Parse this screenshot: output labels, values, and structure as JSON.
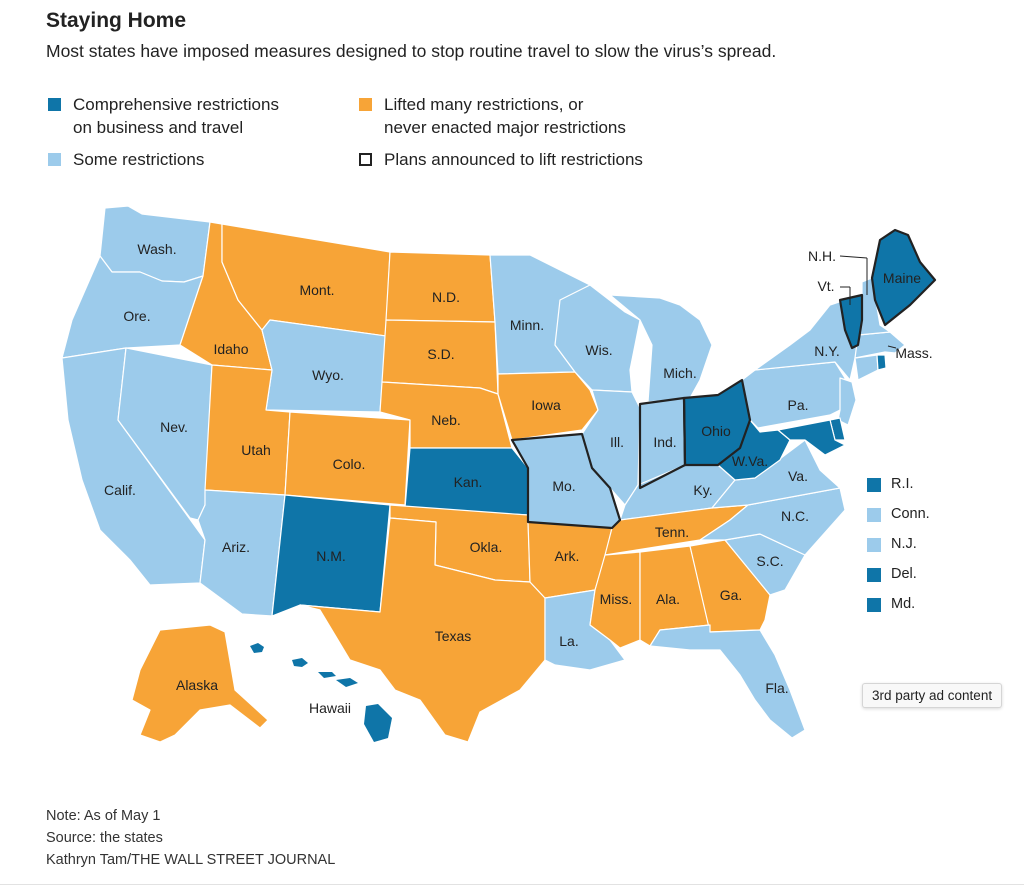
{
  "header": {
    "title": "Staying Home",
    "subtitle": "Most states have imposed measures designed to stop routine travel to slow the virus’s spread."
  },
  "colors": {
    "comprehensive": "#0f75a8",
    "lifted": "#f7a437",
    "some": "#9ccbeb",
    "plans_outline": "#222222"
  },
  "legend": {
    "comprehensive_line1": "Comprehensive restrictions",
    "comprehensive_line2": "on business and travel",
    "lifted_line1": "Lifted many restrictions, or",
    "lifted_line2": "never enacted major restrictions",
    "some": "Some restrictions",
    "plans": "Plans announced to lift restrictions"
  },
  "map_labels": {
    "wash": "Wash.",
    "ore": "Ore.",
    "calif": "Calif.",
    "nev": "Nev.",
    "idaho": "Idaho",
    "mont": "Mont.",
    "wyo": "Wyo.",
    "utah": "Utah",
    "colo": "Colo.",
    "ariz": "Ariz.",
    "nm": "N.M.",
    "nd": "N.D.",
    "sd": "S.D.",
    "neb": "Neb.",
    "kan": "Kan.",
    "okla": "Okla.",
    "texas": "Texas",
    "minn": "Minn.",
    "iowa": "Iowa",
    "mo": "Mo.",
    "ark": "Ark.",
    "la": "La.",
    "wis": "Wis.",
    "ill": "Ill.",
    "mich": "Mich.",
    "ind": "Ind.",
    "ohio": "Ohio",
    "ky": "Ky.",
    "tenn": "Tenn.",
    "miss": "Miss.",
    "ala": "Ala.",
    "ga": "Ga.",
    "fla": "Fla.",
    "sc": "S.C.",
    "nc": "N.C.",
    "va": "Va.",
    "wva": "W.Va.",
    "pa": "Pa.",
    "ny": "N.Y.",
    "vt": "Vt.",
    "nh": "N.H.",
    "maine": "Maine",
    "mass": "Mass.",
    "alaska": "Alaska",
    "hawaii": "Hawaii"
  },
  "small_states": [
    {
      "label": "R.I.",
      "status": "comprehensive"
    },
    {
      "label": "Conn.",
      "status": "some"
    },
    {
      "label": "N.J.",
      "status": "some"
    },
    {
      "label": "Del.",
      "status": "comprehensive"
    },
    {
      "label": "Md.",
      "status": "comprehensive"
    }
  ],
  "footer": {
    "note": "Note: As of May 1",
    "source": "Source: the states",
    "credit": "Kathryn Tam/THE WALL STREET JOURNAL"
  },
  "ad_label": "3rd party ad content"
}
